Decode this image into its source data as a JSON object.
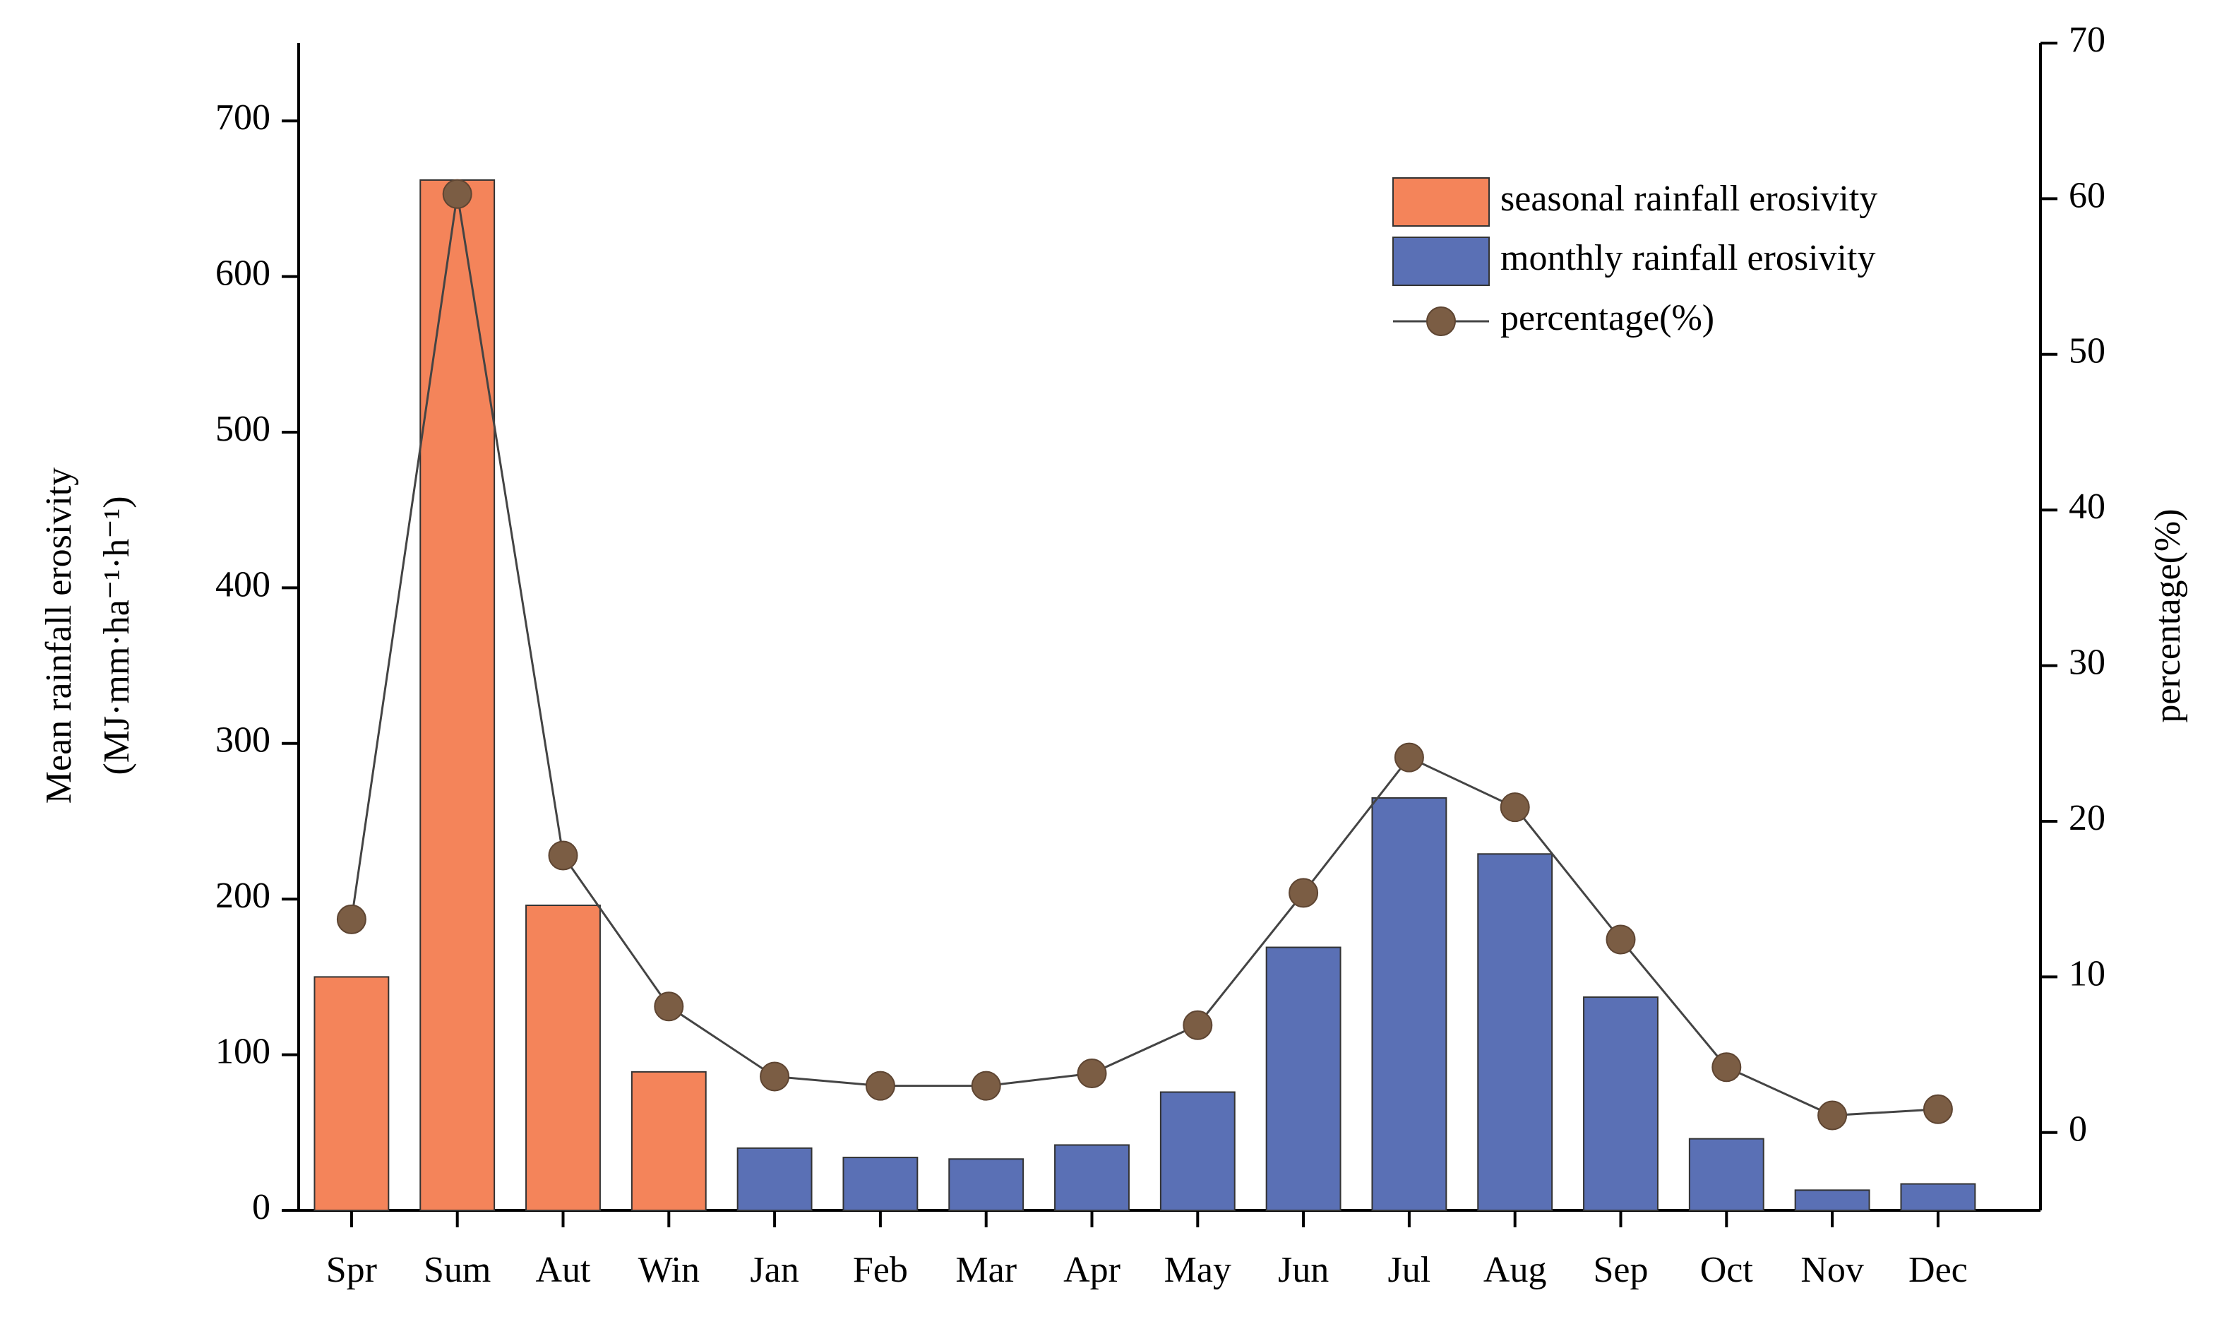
{
  "chart_data": {
    "type": "bar",
    "y_label": [
      "Mean rainfall erosivity",
      "(MJ·mm·ha⁻¹·h⁻¹)"
    ],
    "y2_label": "percentage(%)",
    "categories": [
      "Spr",
      "Sum",
      "Aut",
      "Win",
      "Jan",
      "Feb",
      "Mar",
      "Apr",
      "May",
      "Jun",
      "Jul",
      "Aug",
      "Sep",
      "Oct",
      "Nov",
      "Dec"
    ],
    "series": [
      {
        "name": "seasonal rainfall erosivity",
        "type": "bar",
        "color": "#f4845a",
        "values": [
          150,
          662,
          196,
          89,
          null,
          null,
          null,
          null,
          null,
          null,
          null,
          null,
          null,
          null,
          null,
          null
        ]
      },
      {
        "name": "monthly rainfall erosivity",
        "type": "bar",
        "color": "#5a70b5",
        "values": [
          null,
          null,
          null,
          null,
          40,
          34,
          33,
          42,
          76,
          169,
          265,
          229,
          137,
          46,
          13,
          17
        ]
      },
      {
        "name": "percentage(%)",
        "type": "line",
        "axis": "y2",
        "color": "#444444",
        "marker_color": "#7b5d44",
        "values": [
          13.7,
          60.3,
          17.8,
          8.1,
          3.6,
          3.0,
          3.0,
          3.8,
          6.9,
          15.4,
          24.1,
          20.9,
          12.4,
          4.2,
          1.1,
          1.5
        ]
      }
    ],
    "ylim": [
      0,
      750
    ],
    "yticks": [
      0,
      100,
      200,
      300,
      400,
      500,
      600,
      700
    ],
    "y2lim": [
      -5,
      70
    ],
    "y2ticks": [
      0,
      10,
      20,
      30,
      40,
      50,
      60,
      70
    ],
    "grid": false,
    "legend": "upper right"
  }
}
